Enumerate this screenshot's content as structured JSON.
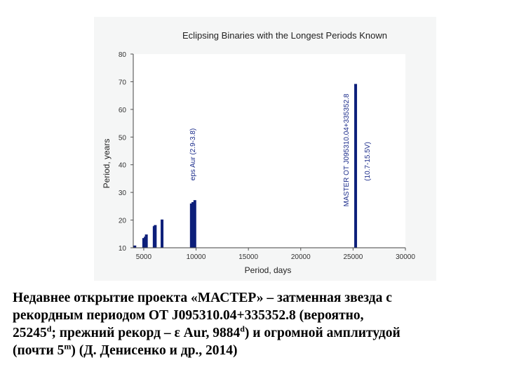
{
  "chart_data": {
    "type": "bar",
    "title": "Eclipsing Binaries with the Longest Periods Known",
    "xlabel": "Period, days",
    "ylabel": "Period, years",
    "xlim": [
      4000,
      30000
    ],
    "ylim": [
      10,
      80
    ],
    "xticks": [
      5000,
      10000,
      15000,
      20000,
      25000,
      30000
    ],
    "yticks": [
      10,
      20,
      30,
      40,
      50,
      60,
      70,
      80
    ],
    "grid": false,
    "bar_color": "#0d1f7a",
    "x": [
      4150,
      5000,
      5150,
      5250,
      6000,
      6100,
      6750,
      9550,
      9700,
      9884,
      25245
    ],
    "values": [
      10.8,
      13.5,
      14.0,
      14.8,
      17.8,
      18.2,
      20.2,
      26.0,
      26.5,
      27.2,
      69.2
    ],
    "annotations": [
      {
        "text": "eps Aur (2.9-3.8)",
        "x": 9884
      },
      {
        "text": "MASTER OT J095310.04+335352.8",
        "x": 25245
      },
      {
        "text": "(10.7-15.5V)",
        "x": 25245
      }
    ]
  },
  "caption": {
    "line1": "Недавнее открытие проекта «МАСТЕР» – затменная звезда с",
    "line2": "рекордным периодом ОТ J095310.04+335352.8 (вероятно,",
    "line3_a": "25245",
    "sup_d1": "d",
    "line3_b": "; прежний рекорд – ε Aur, 9884",
    "sup_d2": "d",
    "line3_c": ") и огромной амплитудой",
    "line4_a": "(почти 5",
    "sup_m": "m",
    "line4_b": ") (Д. Денисенко и др., 2014)"
  }
}
